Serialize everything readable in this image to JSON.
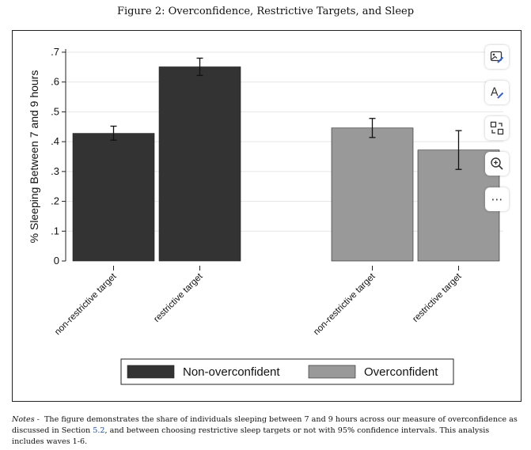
{
  "figure_title": "Figure 2: Overconfidence, Restrictive Targets, and Sleep",
  "notes": {
    "label": "Notes -",
    "text_before": "The figure demonstrates the share of individuals sleeping between 7 and 9 hours across our measure of overconfidence as discussed in Section ",
    "section_ref": "5.2",
    "text_after": ", and between choosing restrictive sleep targets or not with 95% confidence intervals. This analysis includes waves 1-6."
  },
  "toolbar": {
    "items": [
      {
        "name": "image-edit-icon"
      },
      {
        "name": "text-style-icon"
      },
      {
        "name": "swap-layout-icon"
      },
      {
        "name": "zoom-in-icon"
      },
      {
        "name": "more-icon",
        "glyph": "⋯"
      }
    ]
  },
  "chart_data": {
    "type": "bar",
    "ylabel": "% Sleeping Between 7 and 9 hours",
    "ylim": [
      0,
      0.7
    ],
    "yticks": [
      {
        "value": 0,
        "label": "0"
      },
      {
        "value": 0.1,
        "label": ".1"
      },
      {
        "value": 0.2,
        "label": ".2"
      },
      {
        "value": 0.3,
        "label": ".3"
      },
      {
        "value": 0.4,
        "label": ".4"
      },
      {
        "value": 0.5,
        "label": ".5"
      },
      {
        "value": 0.6,
        "label": ".6"
      },
      {
        "value": 0.7,
        "label": ".7"
      }
    ],
    "grid": true,
    "legend_position": "bottom",
    "groups": [
      {
        "series": "Non-overconfident",
        "color": "#333333",
        "bars": [
          {
            "category": "non-restrictive target",
            "value": 0.428,
            "ci_low": 0.405,
            "ci_high": 0.452
          },
          {
            "category": "restrictive target",
            "value": 0.651,
            "ci_low": 0.622,
            "ci_high": 0.68
          }
        ]
      },
      {
        "series": "Overconfident",
        "color": "#999999",
        "bars": [
          {
            "category": "non-restrictive target",
            "value": 0.446,
            "ci_low": 0.414,
            "ci_high": 0.478
          },
          {
            "category": "restrictive target",
            "value": 0.372,
            "ci_low": 0.307,
            "ci_high": 0.437
          }
        ]
      }
    ],
    "legend": [
      {
        "name": "Non-overconfident",
        "color": "#333333"
      },
      {
        "name": "Overconfident",
        "color": "#999999"
      }
    ]
  }
}
